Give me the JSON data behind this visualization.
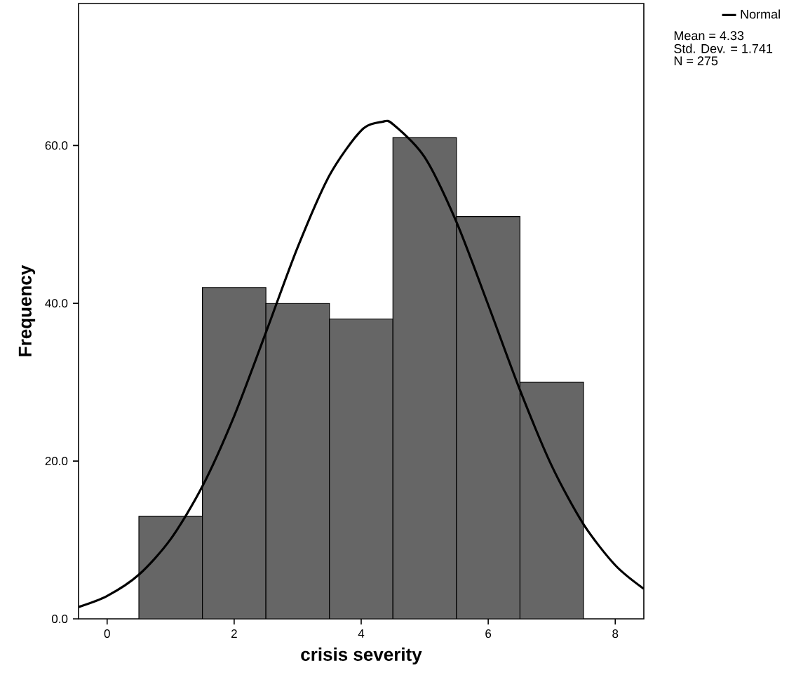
{
  "chart_data": {
    "type": "histogram",
    "xlabel": "crisis severity",
    "ylabel": "Frequency",
    "bins": [
      0.5,
      1.5,
      2.5,
      3.5,
      4.5,
      5.5,
      6.5,
      7.5
    ],
    "values": [
      13,
      42,
      40,
      38,
      61,
      51,
      30
    ],
    "color": "#666666",
    "series": [
      {
        "name": "Normal",
        "type": "line",
        "color": "#000000",
        "x": [
          -0.45,
          0,
          0.5,
          1,
          1.5,
          2,
          2.5,
          3,
          3.5,
          4,
          4.33,
          4.5,
          5,
          5.5,
          6,
          6.5,
          7,
          7.5,
          8,
          8.45
        ],
        "values": [
          1.5,
          2.9,
          5.6,
          10.1,
          16.8,
          25.7,
          36.3,
          47.1,
          56.2,
          61.9,
          63,
          62.7,
          58.5,
          50.3,
          39.8,
          29,
          19.4,
          12,
          6.8,
          3.8
        ]
      }
    ],
    "annotations": [
      "Mean = 4.33",
      "Std. Dev. = 1.741",
      "N = 275"
    ],
    "xlim": [
      -0.45,
      8.45
    ],
    "ylim": [
      0,
      78
    ],
    "xticks": [
      0,
      2,
      4,
      6,
      8
    ],
    "yticks": [
      {
        "value": 0,
        "label": "0.0"
      },
      {
        "value": 20,
        "label": "20.0"
      },
      {
        "value": 40,
        "label": "40.0"
      },
      {
        "value": 60,
        "label": "60.0"
      }
    ],
    "legend": "top right"
  }
}
